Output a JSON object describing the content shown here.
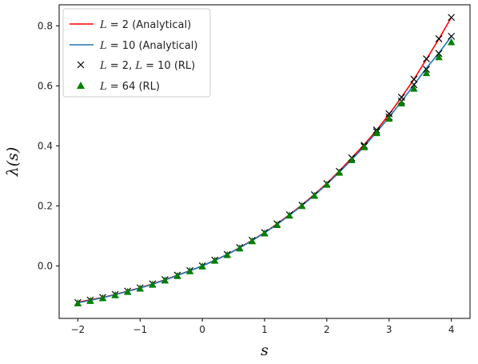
{
  "chart_data": {
    "type": "line",
    "xlabel": "s",
    "ylabel": "λ(s)",
    "xlim": [
      -2.3,
      4.3
    ],
    "ylim": [
      -0.175,
      0.87
    ],
    "xticks": [
      -2,
      -1,
      0,
      1,
      2,
      3,
      4
    ],
    "yticks": [
      0.0,
      0.2,
      0.4,
      0.6,
      0.8
    ],
    "xtick_labels": [
      "−2",
      "−1",
      "0",
      "1",
      "2",
      "3",
      "4"
    ],
    "ytick_labels": [
      "0.0",
      "0.2",
      "0.4",
      "0.6",
      "0.8"
    ],
    "grid": false,
    "legend_position": "top-left",
    "x": [
      -2.0,
      -1.8,
      -1.6,
      -1.4,
      -1.2,
      -1.0,
      -0.8,
      -0.6,
      -0.4,
      -0.2,
      0.0,
      0.2,
      0.4,
      0.6,
      0.8,
      1.0,
      1.2,
      1.4,
      1.6,
      1.8,
      2.0,
      2.2,
      2.4,
      2.6,
      2.8,
      3.0,
      3.2,
      3.4,
      3.6,
      3.8,
      4.0
    ],
    "series": [
      {
        "name": "L = 2 (Analytical)",
        "style": "line",
        "color": "#ff0000",
        "values": [
          -0.121,
          -0.113,
          -0.105,
          -0.095,
          -0.084,
          -0.073,
          -0.06,
          -0.046,
          -0.031,
          -0.016,
          0.0,
          0.019,
          0.038,
          0.061,
          0.085,
          0.111,
          0.14,
          0.171,
          0.203,
          0.238,
          0.275,
          0.316,
          0.36,
          0.404,
          0.452,
          0.505,
          0.562,
          0.622,
          0.689,
          0.756,
          0.828
        ]
      },
      {
        "name": "L = 10 (Analytical)",
        "style": "line",
        "color": "#1f77b4",
        "values": [
          -0.123,
          -0.115,
          -0.106,
          -0.096,
          -0.085,
          -0.074,
          -0.061,
          -0.047,
          -0.032,
          -0.016,
          0.0,
          0.018,
          0.038,
          0.06,
          0.084,
          0.11,
          0.138,
          0.169,
          0.201,
          0.235,
          0.272,
          0.312,
          0.354,
          0.398,
          0.446,
          0.495,
          0.548,
          0.603,
          0.659,
          0.709,
          0.765
        ]
      },
      {
        "name": "L = 2, L = 10 (RL)",
        "style": "marker-x",
        "color": "#000000",
        "points": [
          [
            -2.0,
            -0.122
          ],
          [
            -1.8,
            -0.114
          ],
          [
            -1.6,
            -0.105
          ],
          [
            -1.4,
            -0.095
          ],
          [
            -1.2,
            -0.084
          ],
          [
            -1.0,
            -0.073
          ],
          [
            -0.8,
            -0.06
          ],
          [
            -0.6,
            -0.046
          ],
          [
            -0.4,
            -0.031
          ],
          [
            -0.2,
            -0.016
          ],
          [
            0.0,
            0.0
          ],
          [
            0.2,
            0.019
          ],
          [
            0.4,
            0.038
          ],
          [
            0.6,
            0.061
          ],
          [
            0.8,
            0.085
          ],
          [
            1.0,
            0.111
          ],
          [
            1.2,
            0.14
          ],
          [
            1.4,
            0.17
          ],
          [
            1.6,
            0.202
          ],
          [
            1.8,
            0.237
          ],
          [
            2.0,
            0.274
          ],
          [
            2.2,
            0.315
          ],
          [
            2.4,
            0.36
          ],
          [
            2.6,
            0.402
          ],
          [
            2.8,
            0.453
          ],
          [
            3.0,
            0.507
          ],
          [
            3.2,
            0.562
          ],
          [
            3.4,
            0.622
          ],
          [
            3.6,
            0.69
          ],
          [
            3.8,
            0.757
          ],
          [
            4.0,
            0.828
          ],
          [
            2.6,
            0.398
          ],
          [
            2.8,
            0.447
          ],
          [
            3.0,
            0.496
          ],
          [
            3.2,
            0.549
          ],
          [
            3.4,
            0.604
          ],
          [
            3.6,
            0.655
          ],
          [
            3.8,
            0.708
          ],
          [
            4.0,
            0.765
          ]
        ]
      },
      {
        "name": "L = 64 (RL)",
        "style": "marker-triangle",
        "color": "#008000",
        "values": [
          -0.125,
          -0.117,
          -0.108,
          -0.098,
          -0.087,
          -0.076,
          -0.063,
          -0.049,
          -0.034,
          -0.018,
          -0.002,
          0.017,
          0.036,
          0.058,
          0.082,
          0.108,
          0.136,
          0.167,
          0.199,
          0.233,
          0.27,
          0.31,
          0.352,
          0.395,
          0.442,
          0.49,
          0.541,
          0.59,
          0.642,
          0.695,
          0.745
        ]
      }
    ]
  },
  "legend": {
    "items": [
      {
        "prefix": "L",
        "mid": " = 2 (Analytical)",
        "suffix": "",
        "suffix2": ""
      },
      {
        "prefix": "L",
        "mid": " = 10 (Analytical)",
        "suffix": "",
        "suffix2": ""
      },
      {
        "prefix": "L",
        "mid": " = 2, ",
        "suffix": "L",
        "suffix2": " = 10 (RL)"
      },
      {
        "prefix": "L",
        "mid": " = 64 (RL)",
        "suffix": "",
        "suffix2": ""
      }
    ]
  }
}
